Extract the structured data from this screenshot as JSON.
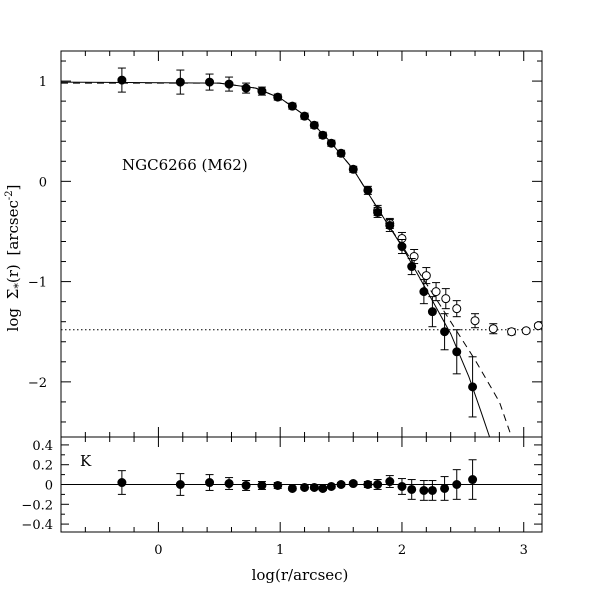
{
  "chart_data": [
    {
      "type": "scatter",
      "panel": "top",
      "annotation": "NGC6266 (M62)",
      "xlabel": "log(r/arcsec)",
      "ylabel_parts": {
        "log": "log",
        "sigma": "Σ",
        "star": "*",
        "r": "(r)",
        "unit": "[arcsec",
        "exp": "-2",
        "close": "]"
      },
      "xlim": [
        -0.8,
        3.15
      ],
      "ylim": [
        -2.55,
        1.3
      ],
      "x_ticks": [
        "0",
        "1",
        "2",
        "3"
      ],
      "y_ticks": [
        {
          "value": 1,
          "label": "1"
        },
        {
          "value": 0,
          "label": "0"
        },
        {
          "value": -1,
          "label": "−1"
        },
        {
          "value": -2,
          "label": "−2"
        }
      ],
      "series": [
        {
          "kind": "filled",
          "points": [
            {
              "x": -0.3,
              "y": 1.01,
              "err": 0.12
            },
            {
              "x": 0.18,
              "y": 0.99,
              "err": 0.12
            },
            {
              "x": 0.42,
              "y": 0.99,
              "err": 0.08
            },
            {
              "x": 0.58,
              "y": 0.97,
              "err": 0.07
            },
            {
              "x": 0.72,
              "y": 0.93,
              "err": 0.05
            },
            {
              "x": 0.85,
              "y": 0.9,
              "err": 0.04
            },
            {
              "x": 0.98,
              "y": 0.84,
              "err": 0.03
            },
            {
              "x": 1.1,
              "y": 0.75,
              "err": 0.03
            },
            {
              "x": 1.2,
              "y": 0.65,
              "err": 0.03
            },
            {
              "x": 1.28,
              "y": 0.56,
              "err": 0.03
            },
            {
              "x": 1.35,
              "y": 0.46,
              "err": 0.03
            },
            {
              "x": 1.42,
              "y": 0.38,
              "err": 0.03
            },
            {
              "x": 1.5,
              "y": 0.28,
              "err": 0.03
            },
            {
              "x": 1.6,
              "y": 0.12,
              "err": 0.03
            },
            {
              "x": 1.72,
              "y": -0.09,
              "err": 0.04
            },
            {
              "x": 1.8,
              "y": -0.31,
              "err": 0.05
            },
            {
              "x": 1.9,
              "y": -0.44,
              "err": 0.06
            },
            {
              "x": 2.0,
              "y": -0.65,
              "err": 0.07
            },
            {
              "x": 2.08,
              "y": -0.85,
              "err": 0.08
            },
            {
              "x": 2.18,
              "y": -1.1,
              "err": 0.12
            },
            {
              "x": 2.25,
              "y": -1.3,
              "err": 0.15
            },
            {
              "x": 2.35,
              "y": -1.5,
              "err": 0.18
            },
            {
              "x": 2.45,
              "y": -1.7,
              "err": 0.22
            },
            {
              "x": 2.58,
              "y": -2.05,
              "err": 0.3
            }
          ]
        },
        {
          "kind": "open",
          "points": [
            {
              "x": 1.8,
              "y": -0.29,
              "err": 0.05
            },
            {
              "x": 1.9,
              "y": -0.42,
              "err": 0.05
            },
            {
              "x": 2.0,
              "y": -0.57,
              "err": 0.06
            },
            {
              "x": 2.1,
              "y": -0.75,
              "err": 0.07
            },
            {
              "x": 2.2,
              "y": -0.94,
              "err": 0.08
            },
            {
              "x": 2.28,
              "y": -1.1,
              "err": 0.09
            },
            {
              "x": 2.36,
              "y": -1.17,
              "err": 0.1
            },
            {
              "x": 2.45,
              "y": -1.27,
              "err": 0.08
            },
            {
              "x": 2.6,
              "y": -1.39,
              "err": 0.07
            },
            {
              "x": 2.75,
              "y": -1.47,
              "err": 0.05
            },
            {
              "x": 2.9,
              "y": -1.5,
              "err": 0.03
            },
            {
              "x": 3.02,
              "y": -1.49,
              "err": 0.02
            },
            {
              "x": 3.12,
              "y": -1.44,
              "err": 0.02
            }
          ]
        }
      ],
      "background_level": -1.48,
      "fits": [
        {
          "style": "solid",
          "points": [
            [
              -0.8,
              0.99
            ],
            [
              0.5,
              0.98
            ],
            [
              0.8,
              0.93
            ],
            [
              1.0,
              0.83
            ],
            [
              1.2,
              0.66
            ],
            [
              1.4,
              0.41
            ],
            [
              1.6,
              0.12
            ],
            [
              1.8,
              -0.27
            ],
            [
              2.0,
              -0.65
            ],
            [
              2.2,
              -1.08
            ],
            [
              2.4,
              -1.52
            ],
            [
              2.55,
              -1.95
            ],
            [
              2.65,
              -2.3
            ],
            [
              2.72,
              -2.55
            ]
          ]
        },
        {
          "style": "dashed",
          "points": [
            [
              -0.8,
              0.98
            ],
            [
              0.5,
              0.98
            ],
            [
              0.8,
              0.93
            ],
            [
              1.0,
              0.83
            ],
            [
              1.2,
              0.66
            ],
            [
              1.4,
              0.41
            ],
            [
              1.6,
              0.12
            ],
            [
              1.8,
              -0.27
            ],
            [
              2.0,
              -0.64
            ],
            [
              2.2,
              -1.02
            ],
            [
              2.4,
              -1.4
            ],
            [
              2.6,
              -1.78
            ],
            [
              2.8,
              -2.2
            ],
            [
              2.9,
              -2.55
            ]
          ]
        }
      ]
    },
    {
      "type": "scatter",
      "panel": "bottom",
      "annotation": "K",
      "xlim": [
        -0.8,
        3.15
      ],
      "ylim": [
        -0.48,
        0.48
      ],
      "y_ticks": [
        {
          "value": 0.4,
          "label": "0.4"
        },
        {
          "value": 0.2,
          "label": "0.2"
        },
        {
          "value": 0,
          "label": "0"
        },
        {
          "value": -0.2,
          "label": "−0.2"
        },
        {
          "value": -0.4,
          "label": "−0.4"
        }
      ],
      "points": [
        {
          "x": -0.3,
          "y": 0.02,
          "err": 0.12
        },
        {
          "x": 0.18,
          "y": 0.0,
          "err": 0.11
        },
        {
          "x": 0.42,
          "y": 0.02,
          "err": 0.08
        },
        {
          "x": 0.58,
          "y": 0.01,
          "err": 0.06
        },
        {
          "x": 0.72,
          "y": -0.01,
          "err": 0.05
        },
        {
          "x": 0.85,
          "y": -0.01,
          "err": 0.04
        },
        {
          "x": 0.98,
          "y": -0.01,
          "err": 0.03
        },
        {
          "x": 1.1,
          "y": -0.04,
          "err": 0.02
        },
        {
          "x": 1.2,
          "y": -0.03,
          "err": 0.02
        },
        {
          "x": 1.28,
          "y": -0.03,
          "err": 0.02
        },
        {
          "x": 1.35,
          "y": -0.04,
          "err": 0.02
        },
        {
          "x": 1.42,
          "y": -0.02,
          "err": 0.02
        },
        {
          "x": 1.5,
          "y": 0.0,
          "err": 0.02
        },
        {
          "x": 1.6,
          "y": 0.01,
          "err": 0.02
        },
        {
          "x": 1.72,
          "y": 0.0,
          "err": 0.03
        },
        {
          "x": 1.8,
          "y": 0.0,
          "err": 0.05
        },
        {
          "x": 1.9,
          "y": 0.03,
          "err": 0.06
        },
        {
          "x": 2.0,
          "y": -0.02,
          "err": 0.08
        },
        {
          "x": 2.08,
          "y": -0.05,
          "err": 0.1
        },
        {
          "x": 2.18,
          "y": -0.06,
          "err": 0.1
        },
        {
          "x": 2.25,
          "y": -0.06,
          "err": 0.1
        },
        {
          "x": 2.35,
          "y": -0.04,
          "err": 0.12
        },
        {
          "x": 2.45,
          "y": 0.0,
          "err": 0.15
        },
        {
          "x": 2.58,
          "y": 0.05,
          "err": 0.2
        }
      ]
    }
  ]
}
